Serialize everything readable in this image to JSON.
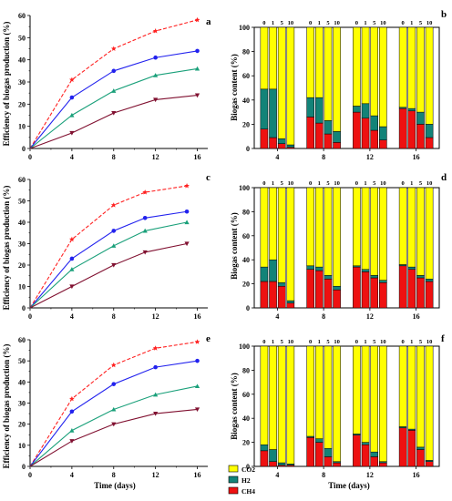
{
  "colors": {
    "co2": "#ffff00",
    "h2": "#138378",
    "ch4": "#ee1111",
    "s0": "#ff2020",
    "s1": "#2222ee",
    "s5": "#1aa07a",
    "s10": "#801030"
  },
  "axes": {
    "x_title": "Time (days)",
    "line_y_title": "Efficiency of biogas production (%)",
    "bar_y_title": "Biogas content (%)"
  },
  "legend": {
    "co2": "CO2",
    "h2": "H2",
    "ch4": "CH4"
  },
  "chart_data": [
    {
      "panel": "a",
      "type": "line",
      "x_ticks": [
        "0",
        "4",
        "8",
        "12",
        "16"
      ],
      "y_ticks": [
        "0",
        "10",
        "20",
        "30",
        "40",
        "50",
        "60"
      ],
      "xlim": [
        0,
        17
      ],
      "ylim": [
        0,
        60
      ],
      "series": [
        {
          "marker": "star",
          "dashed": true,
          "x": [
            0,
            4,
            8,
            12,
            16
          ],
          "y": [
            0,
            31,
            45,
            53,
            58
          ]
        },
        {
          "marker": "circle",
          "dashed": false,
          "x": [
            0,
            4,
            8,
            12,
            16
          ],
          "y": [
            0,
            23,
            35,
            41,
            44
          ]
        },
        {
          "marker": "triangle",
          "dashed": false,
          "x": [
            0,
            4,
            8,
            12,
            16
          ],
          "y": [
            0,
            15,
            26,
            33,
            36
          ]
        },
        {
          "marker": "triangle-down",
          "dashed": false,
          "x": [
            0,
            4,
            8,
            12,
            16
          ],
          "y": [
            0,
            7,
            16,
            22,
            24
          ]
        }
      ]
    },
    {
      "panel": "b",
      "type": "bar",
      "stacked": true,
      "x_ticks": [
        "4",
        "8",
        "12",
        "16"
      ],
      "y_ticks": [
        "0",
        "20",
        "40",
        "60",
        "80",
        "100"
      ],
      "ylim": [
        0,
        100
      ],
      "bar_labels": [
        "0",
        "1",
        "5",
        "10"
      ],
      "groups": [
        {
          "day": "4",
          "ch4": [
            16,
            9,
            4,
            1
          ],
          "h2": [
            33,
            40,
            4,
            2
          ]
        },
        {
          "day": "8",
          "ch4": [
            26,
            21,
            12,
            5
          ],
          "h2": [
            16,
            21,
            11,
            9
          ]
        },
        {
          "day": "12",
          "ch4": [
            30,
            25,
            15,
            7
          ],
          "h2": [
            5,
            12,
            12,
            11
          ]
        },
        {
          "day": "16",
          "ch4": [
            33,
            31,
            20,
            9
          ],
          "h2": [
            1,
            2,
            10,
            11
          ]
        }
      ]
    },
    {
      "panel": "c",
      "type": "line",
      "x_ticks": [
        "0",
        "4",
        "8",
        "12",
        "16"
      ],
      "y_ticks": [
        "0",
        "10",
        "20",
        "30",
        "40",
        "50",
        "60"
      ],
      "xlim": [
        0,
        17
      ],
      "ylim": [
        0,
        60
      ],
      "series": [
        {
          "marker": "star",
          "dashed": true,
          "x": [
            0,
            4,
            8,
            11,
            15
          ],
          "y": [
            0,
            32,
            48,
            54,
            57
          ]
        },
        {
          "marker": "circle",
          "dashed": false,
          "x": [
            0,
            4,
            8,
            11,
            15
          ],
          "y": [
            0,
            23,
            36,
            42,
            45
          ]
        },
        {
          "marker": "triangle",
          "dashed": false,
          "x": [
            0,
            4,
            8,
            11,
            15
          ],
          "y": [
            0,
            18,
            29,
            36,
            40
          ]
        },
        {
          "marker": "triangle-down",
          "dashed": false,
          "x": [
            0,
            4,
            8,
            11,
            15
          ],
          "y": [
            0,
            10,
            20,
            26,
            30
          ]
        }
      ]
    },
    {
      "panel": "d",
      "type": "bar",
      "stacked": true,
      "x_ticks": [
        "4",
        "8",
        "12",
        "16"
      ],
      "y_ticks": [
        "0",
        "20",
        "40",
        "60",
        "80",
        "100"
      ],
      "ylim": [
        0,
        100
      ],
      "bar_labels": [
        "0",
        "1",
        "5",
        "10"
      ],
      "groups": [
        {
          "day": "4",
          "ch4": [
            22,
            22,
            18,
            4
          ],
          "h2": [
            12,
            18,
            3,
            2
          ]
        },
        {
          "day": "8",
          "ch4": [
            32,
            31,
            24,
            15
          ],
          "h2": [
            3,
            3,
            3,
            3
          ]
        },
        {
          "day": "12",
          "ch4": [
            34,
            30,
            25,
            21
          ],
          "h2": [
            1,
            2,
            2,
            2
          ]
        },
        {
          "day": "16",
          "ch4": [
            35,
            32,
            25,
            22
          ],
          "h2": [
            1,
            2,
            2,
            2
          ]
        }
      ]
    },
    {
      "panel": "e",
      "type": "line",
      "x_ticks": [
        "0",
        "4",
        "8",
        "12",
        "16"
      ],
      "y_ticks": [
        "0",
        "10",
        "20",
        "30",
        "40",
        "50",
        "60"
      ],
      "xlim": [
        0,
        17
      ],
      "ylim": [
        0,
        60
      ],
      "series": [
        {
          "marker": "star",
          "dashed": true,
          "x": [
            0,
            4,
            8,
            12,
            16
          ],
          "y": [
            0,
            32,
            48,
            56,
            59
          ]
        },
        {
          "marker": "circle",
          "dashed": false,
          "x": [
            0,
            4,
            8,
            12,
            16
          ],
          "y": [
            0,
            26,
            39,
            47,
            50
          ]
        },
        {
          "marker": "triangle",
          "dashed": false,
          "x": [
            0,
            4,
            8,
            12,
            16
          ],
          "y": [
            0,
            17,
            27,
            34,
            38
          ]
        },
        {
          "marker": "triangle-down",
          "dashed": false,
          "x": [
            0,
            4,
            8,
            12,
            16
          ],
          "y": [
            0,
            12,
            20,
            25,
            27
          ]
        }
      ]
    },
    {
      "panel": "f",
      "type": "bar",
      "stacked": true,
      "x_ticks": [
        "4",
        "8",
        "12",
        "16"
      ],
      "y_ticks": [
        "0",
        "20",
        "40",
        "60",
        "80",
        "100"
      ],
      "ylim": [
        0,
        100
      ],
      "bar_labels": [
        "0",
        "1",
        "5",
        "10"
      ],
      "groups": [
        {
          "day": "4",
          "ch4": [
            13,
            4,
            1,
            1
          ],
          "h2": [
            5,
            10,
            2,
            1
          ]
        },
        {
          "day": "8",
          "ch4": [
            24,
            20,
            8,
            3
          ],
          "h2": [
            1,
            3,
            7,
            1
          ]
        },
        {
          "day": "12",
          "ch4": [
            26,
            18,
            8,
            3
          ],
          "h2": [
            1,
            2,
            4,
            1
          ]
        },
        {
          "day": "16",
          "ch4": [
            32,
            30,
            14,
            4
          ],
          "h2": [
            1,
            1,
            2,
            1
          ]
        }
      ]
    }
  ]
}
